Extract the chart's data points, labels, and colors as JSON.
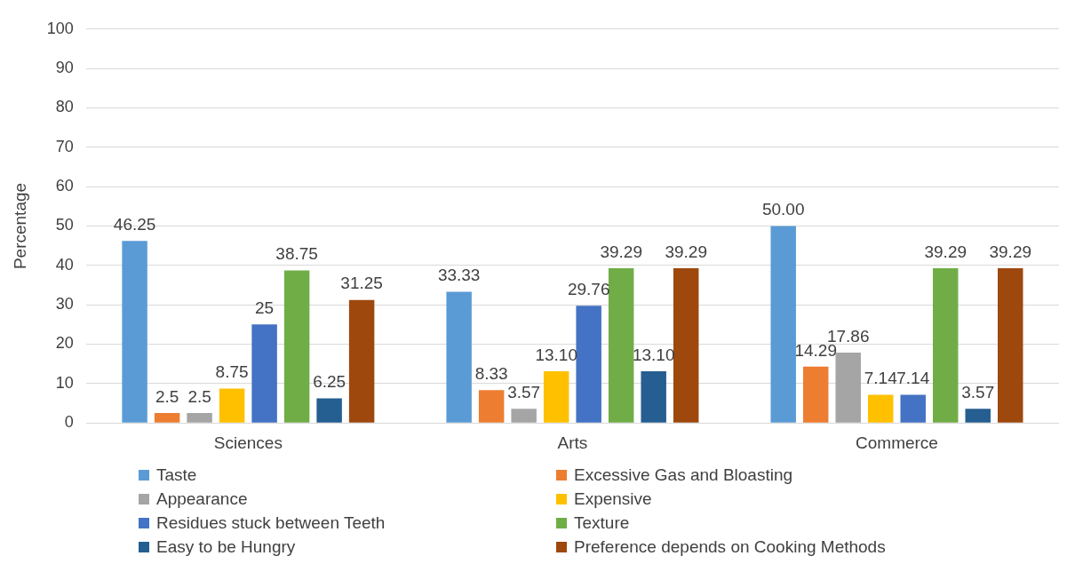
{
  "chart_data": {
    "type": "bar",
    "ylabel": "Percentage",
    "categories": [
      "Sciences",
      "Arts",
      "Commerce"
    ],
    "series": [
      {
        "name": "Taste",
        "color": "#5b9bd5",
        "values": [
          46.25,
          33.33,
          50.0
        ],
        "value_labels": [
          "46.25",
          "33.33",
          "50.00"
        ]
      },
      {
        "name": "Excessive Gas and Bloasting",
        "color": "#ed7d31",
        "values": [
          2.5,
          8.33,
          14.29
        ],
        "value_labels": [
          "2.5",
          "8.33",
          "14.29"
        ]
      },
      {
        "name": "Appearance",
        "color": "#a5a5a5",
        "values": [
          2.5,
          3.57,
          17.86
        ],
        "value_labels": [
          "2.5",
          "3.57",
          "17.86"
        ]
      },
      {
        "name": "Expensive",
        "color": "#ffc000",
        "values": [
          8.75,
          13.1,
          7.14
        ],
        "value_labels": [
          "8.75",
          "13.10",
          "7.14"
        ]
      },
      {
        "name": "Residues stuck between Teeth",
        "color": "#4472c4",
        "values": [
          25,
          29.76,
          7.14
        ],
        "value_labels": [
          "25",
          "29.76",
          "7.14"
        ]
      },
      {
        "name": "Texture",
        "color": "#70ad47",
        "values": [
          38.75,
          39.29,
          39.29
        ],
        "value_labels": [
          "38.75",
          "39.29",
          "39.29"
        ]
      },
      {
        "name": "Easy to be Hungry",
        "color": "#255e91",
        "values": [
          6.25,
          13.1,
          3.57
        ],
        "value_labels": [
          "6.25",
          "13.10",
          "3.57"
        ]
      },
      {
        "name": "Preference depends on Cooking Methods",
        "color": "#9e480e",
        "values": [
          31.25,
          39.29,
          39.29
        ],
        "value_labels": [
          "31.25",
          "39.29",
          "39.29"
        ]
      }
    ],
    "ylim": [
      0,
      100
    ],
    "yticks": [
      0,
      10,
      20,
      30,
      40,
      50,
      60,
      70,
      80,
      90,
      100
    ],
    "grid": "y",
    "legend": "bottom"
  }
}
